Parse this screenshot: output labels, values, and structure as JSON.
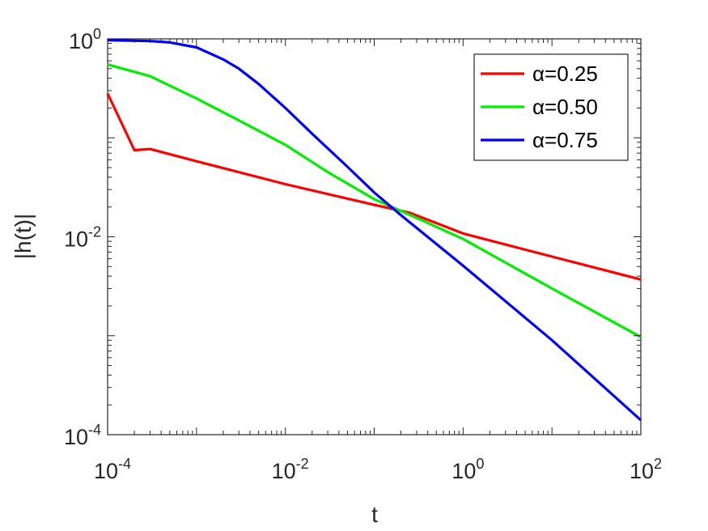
{
  "chart_data": {
    "type": "line",
    "xscale": "log",
    "yscale": "log",
    "xlabel": "t",
    "ylabel": "|h(t)|",
    "xlim": [
      0.0001,
      100
    ],
    "ylim": [
      0.0001,
      1
    ],
    "xticks": [
      {
        "base": "10",
        "exp": "-4",
        "value": 0.0001
      },
      {
        "base": "10",
        "exp": "-2",
        "value": 0.01
      },
      {
        "base": "10",
        "exp": "0",
        "value": 1
      },
      {
        "base": "10",
        "exp": "2",
        "value": 100
      }
    ],
    "yticks": [
      {
        "base": "10",
        "exp": "-4",
        "value": 0.0001
      },
      {
        "base": "10",
        "exp": "-2",
        "value": 0.01
      },
      {
        "base": "10",
        "exp": "0",
        "value": 1
      }
    ],
    "grid": false,
    "legend_position": "top-right",
    "series": [
      {
        "name": "α=0.25",
        "color": "#ff0000",
        "x": [
          0.0001,
          0.0002,
          0.0003,
          0.001,
          0.01,
          0.1,
          0.25,
          1,
          10,
          100
        ],
        "y": [
          0.28,
          0.075,
          0.077,
          0.058,
          0.034,
          0.021,
          0.0175,
          0.0108,
          0.0063,
          0.0037
        ]
      },
      {
        "name": "α=0.50",
        "color": "#00ee00",
        "x": [
          0.0001,
          0.0003,
          0.001,
          0.003,
          0.01,
          0.03,
          0.1,
          0.3,
          1,
          10,
          100
        ],
        "y": [
          0.55,
          0.42,
          0.25,
          0.15,
          0.085,
          0.045,
          0.024,
          0.0155,
          0.0095,
          0.003,
          0.00097
        ]
      },
      {
        "name": "α=0.75",
        "color": "#0000ff",
        "x": [
          0.0001,
          0.0003,
          0.0005,
          0.001,
          0.002,
          0.003,
          0.005,
          0.01,
          0.02,
          0.05,
          0.1,
          0.2,
          1,
          10,
          100
        ],
        "y": [
          0.97,
          0.95,
          0.92,
          0.82,
          0.62,
          0.5,
          0.35,
          0.2,
          0.11,
          0.051,
          0.028,
          0.0165,
          0.0051,
          0.0009,
          0.00014
        ]
      }
    ]
  }
}
